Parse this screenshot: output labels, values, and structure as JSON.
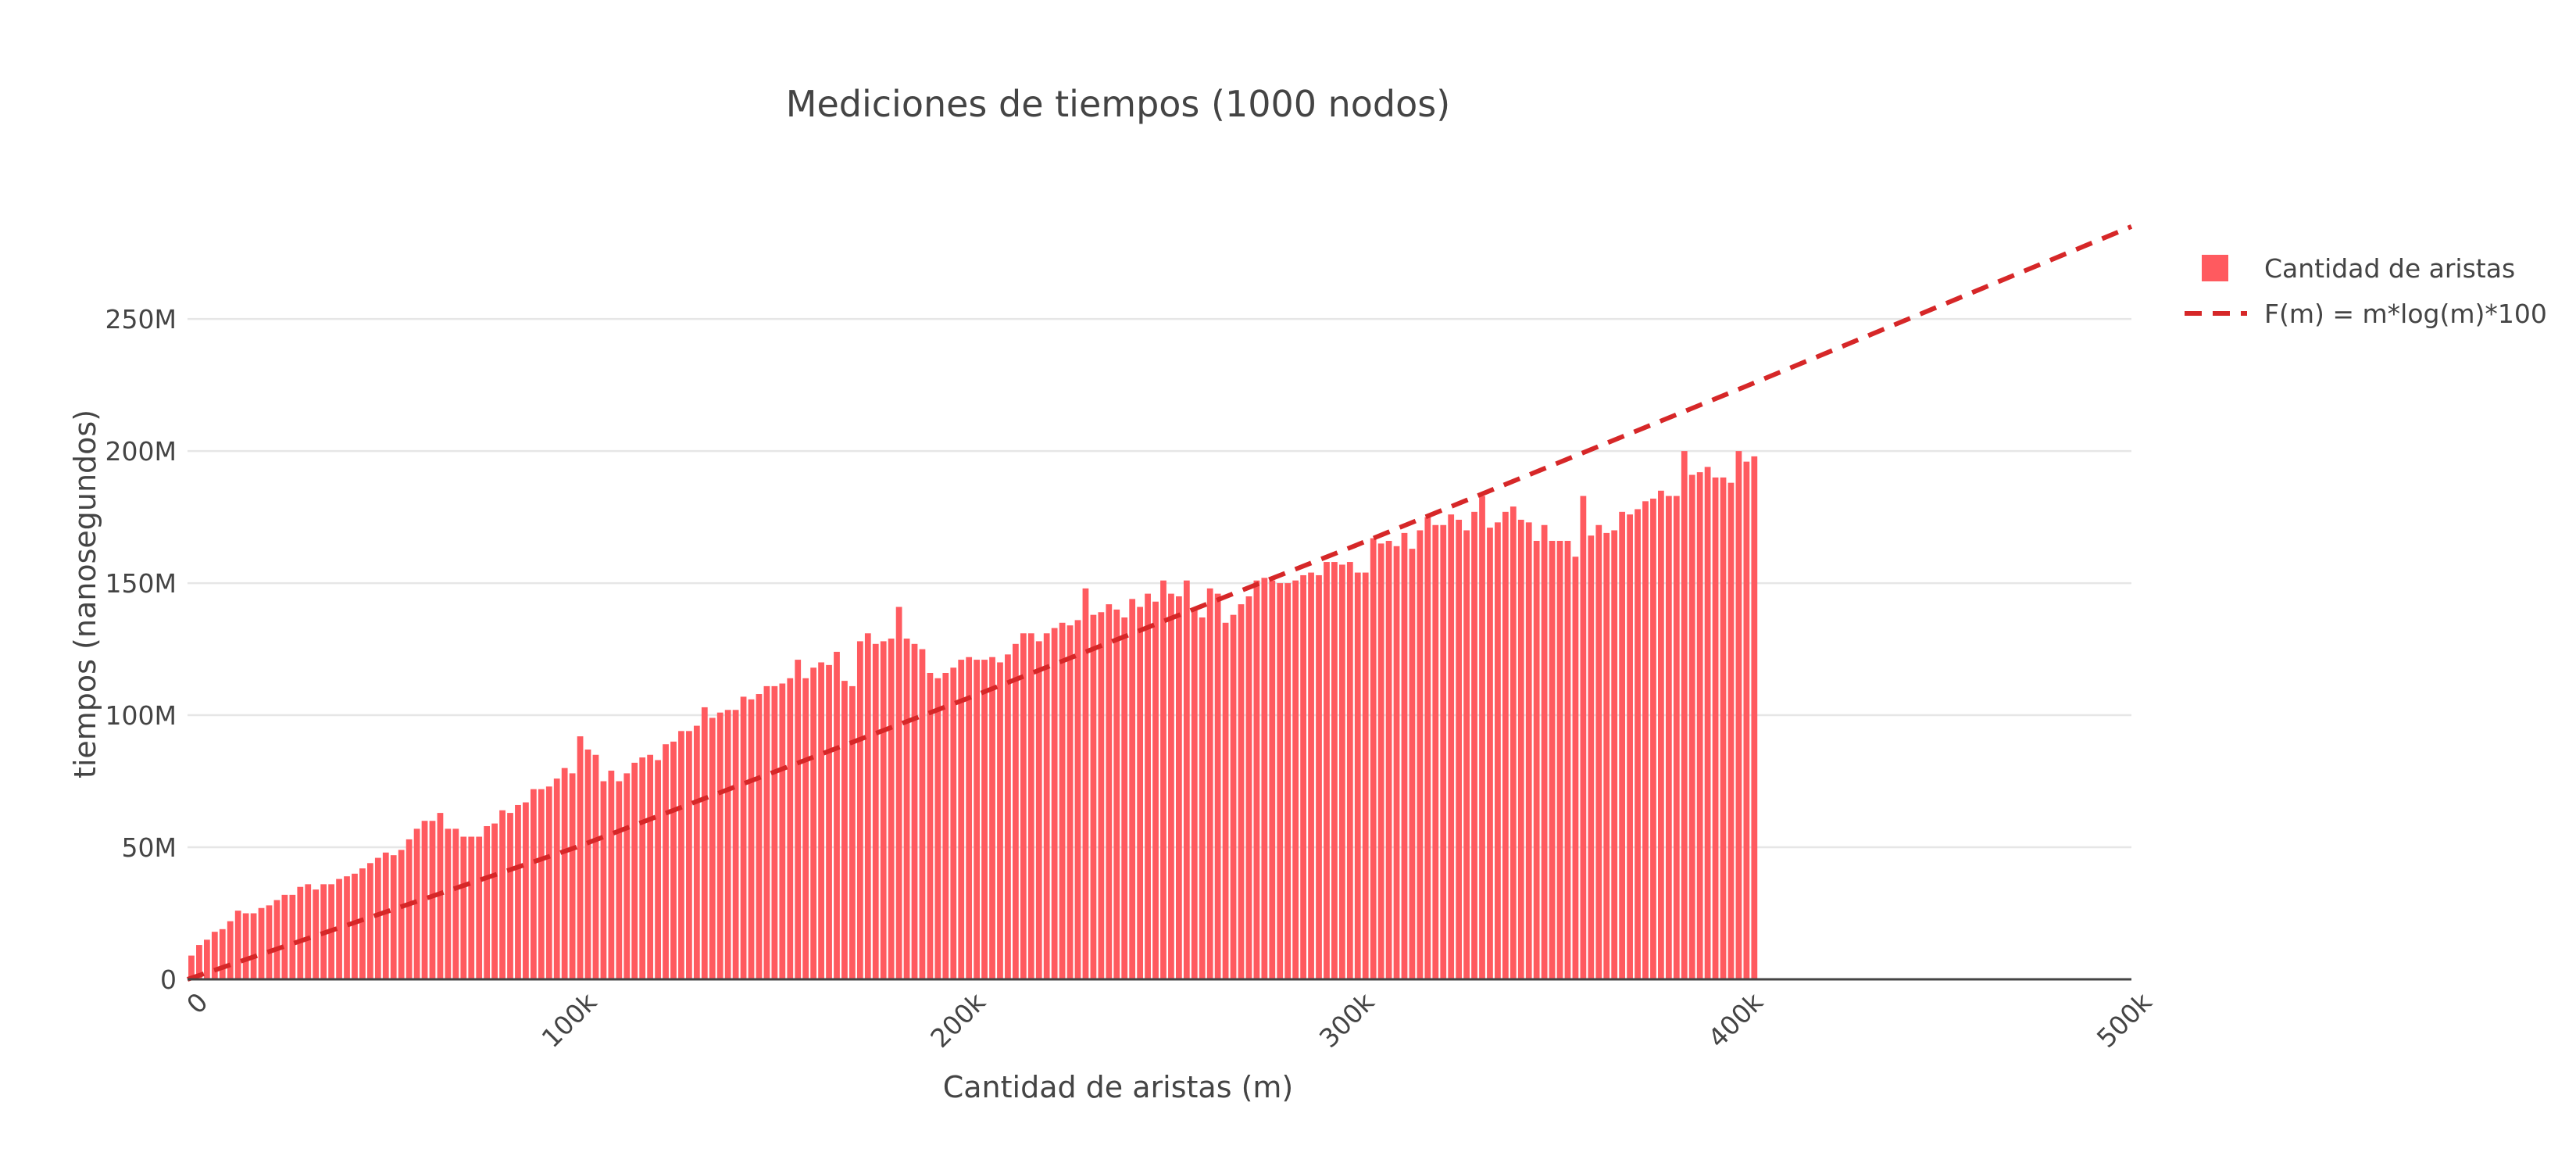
{
  "chart_data": {
    "type": "bar",
    "title": "Mediciones de tiempos (1000 nodos)",
    "xlabel": "Cantidad de aristas (m)",
    "ylabel": "tiempos (nanosegundos)",
    "xlim": [
      0,
      500000
    ],
    "ylim": [
      0,
      282000000
    ],
    "x_ticks": [
      {
        "value": 0,
        "label": "0"
      },
      {
        "value": 100000,
        "label": "100k"
      },
      {
        "value": 200000,
        "label": "200k"
      },
      {
        "value": 300000,
        "label": "300k"
      },
      {
        "value": 400000,
        "label": "400k"
      },
      {
        "value": 500000,
        "label": "500k"
      }
    ],
    "y_ticks": [
      {
        "value": 0,
        "label": "0"
      },
      {
        "value": 50000000,
        "label": "50M"
      },
      {
        "value": 100000000,
        "label": "100M"
      },
      {
        "value": 150000000,
        "label": "150M"
      },
      {
        "value": 200000000,
        "label": "200M"
      },
      {
        "value": 250000000,
        "label": "250M"
      }
    ],
    "grid": true,
    "legend_position": "top-right",
    "series": [
      {
        "name": "Cantidad de aristas",
        "type": "bar",
        "color": "#ef553b",
        "bar_color": "#ff5a5f",
        "x_start": 1000,
        "x_step": 2000,
        "values_millions": [
          9,
          13,
          15,
          18,
          19,
          22,
          26,
          25,
          25,
          27,
          28,
          30,
          32,
          32,
          35,
          36,
          34,
          36,
          36,
          38,
          39,
          40,
          42,
          44,
          46,
          48,
          47,
          49,
          53,
          57,
          60,
          60,
          63,
          57,
          57,
          54,
          54,
          54,
          58,
          59,
          64,
          63,
          66,
          67,
          72,
          72,
          73,
          76,
          80,
          78,
          92,
          87,
          85,
          75,
          79,
          75,
          78,
          82,
          84,
          85,
          83,
          89,
          90,
          94,
          94,
          96,
          103,
          99,
          101,
          102,
          102,
          107,
          106,
          108,
          111,
          111,
          112,
          114,
          121,
          114,
          118,
          120,
          119,
          124,
          113,
          111,
          128,
          131,
          127,
          128,
          129,
          141,
          129,
          127,
          125,
          116,
          114,
          116,
          118,
          121,
          122,
          121,
          121,
          122,
          120,
          123,
          127,
          131,
          131,
          128,
          131,
          133,
          135,
          134,
          136,
          148,
          138,
          139,
          142,
          140,
          137,
          144,
          141,
          146,
          143,
          151,
          146,
          145,
          151,
          140,
          137,
          148,
          146,
          135,
          138,
          142,
          145,
          151,
          152,
          151,
          150,
          150,
          151,
          153,
          154,
          153,
          158,
          158,
          157,
          158,
          154,
          154,
          167,
          165,
          166,
          164,
          169,
          163,
          170,
          175,
          172,
          172,
          176,
          174,
          170,
          177,
          183,
          171,
          173,
          177,
          179,
          174,
          173,
          166,
          172,
          166,
          166,
          166,
          160,
          183,
          168,
          172,
          169,
          170,
          177,
          176,
          178,
          181,
          182,
          185,
          183,
          183,
          200,
          191,
          192,
          194,
          190,
          190,
          188,
          200,
          196,
          198
        ]
      },
      {
        "name": "F(m) = m*log(m)*100",
        "type": "line",
        "dash": "dash",
        "color": "#d62728",
        "points": [
          {
            "x": 0,
            "y": 0
          },
          {
            "x": 100000,
            "y": 50000000
          },
          {
            "x": 200000,
            "y": 106000000
          },
          {
            "x": 300000,
            "y": 164000000
          },
          {
            "x": 400000,
            "y": 224000000
          },
          {
            "x": 500000,
            "y": 285000000
          }
        ]
      }
    ]
  }
}
